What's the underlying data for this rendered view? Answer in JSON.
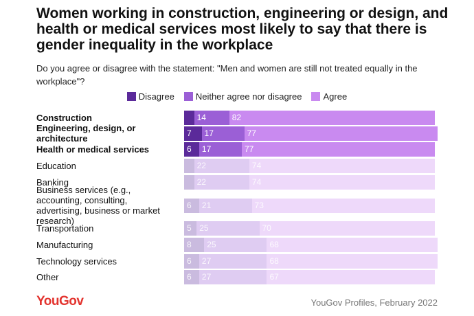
{
  "chart_data": {
    "type": "bar",
    "orientation": "horizontal",
    "stacked": true,
    "title": "Women working in construction, engineering or design, and health or medical services most likely to say that there is gender inequality in the workplace",
    "subtitle": "Do you agree or disagree with the statement: \"Men and women are still not treated equally in the workplace\"?",
    "categories": [
      "Construction",
      "Engineering, design, or architecture",
      "Health or medical services",
      "Education",
      "Banking",
      "Business services (e.g., accounting, consulting, advertising, business or market research)",
      "Transportation",
      "Manufacturing",
      "Technology services",
      "Other"
    ],
    "highlight": [
      true,
      true,
      true,
      false,
      false,
      false,
      false,
      false,
      false,
      false
    ],
    "series": [
      {
        "name": "Disagree",
        "color": "#5b2a9a",
        "values": [
          4,
          7,
          6,
          4,
          4,
          6,
          5,
          8,
          6,
          6
        ],
        "value_labels": [
          null,
          "7",
          "6",
          null,
          null,
          "6",
          "5",
          "8",
          "6",
          "6"
        ]
      },
      {
        "name": "Neither agree nor disagree",
        "color": "#9b5fd6",
        "values": [
          14,
          17,
          17,
          22,
          22,
          21,
          25,
          25,
          27,
          27
        ]
      },
      {
        "name": "Agree",
        "color": "#c98af0",
        "values": [
          82,
          77,
          77,
          74,
          74,
          73,
          70,
          68,
          68,
          67
        ]
      }
    ],
    "xlim": [
      0,
      100
    ],
    "brand": "YouGov",
    "source": "YouGov Profiles, February 2022"
  }
}
